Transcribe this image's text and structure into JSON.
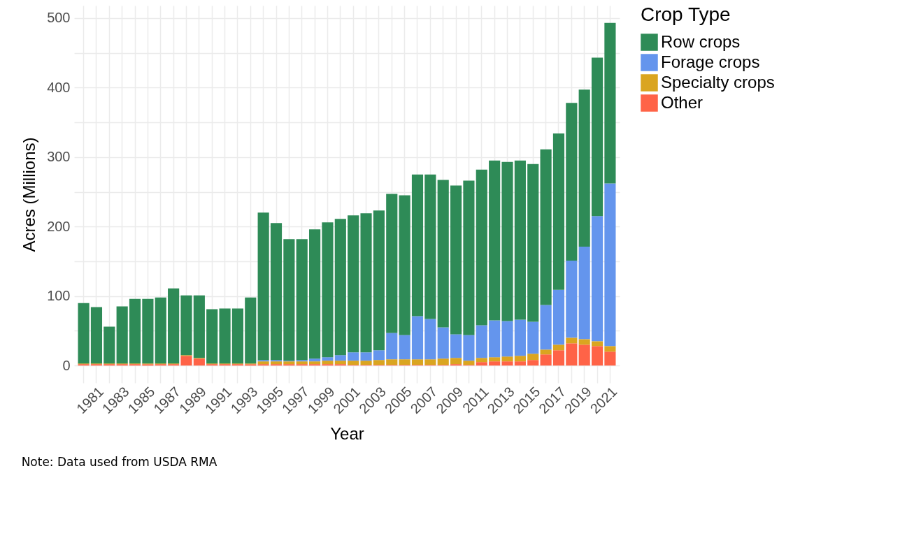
{
  "chart_data": {
    "type": "bar",
    "stacked": true,
    "xlabel": "Year",
    "ylabel": "Acres (Millions)",
    "legend_title": "Crop Type",
    "legend": "right",
    "grid": true,
    "categories": [
      null,
      "1981",
      null,
      "1983",
      null,
      "1985",
      null,
      "1987",
      null,
      "1989",
      null,
      "1991",
      null,
      "1993",
      null,
      "1995",
      null,
      "1997",
      null,
      "1999",
      null,
      "2001",
      null,
      "2003",
      null,
      "2005",
      null,
      "2007",
      null,
      "2009",
      null,
      "2011",
      null,
      "2013",
      null,
      "2015",
      null,
      "2017",
      null,
      "2019",
      null,
      "2021"
    ],
    "ylim": [
      -25,
      518
    ],
    "yticks": [
      0,
      {
        "value": 50,
        "label": null
      },
      100,
      {
        "value": 150,
        "label": null
      },
      200,
      {
        "value": 250,
        "label": null
      },
      300,
      {
        "value": 350,
        "label": null
      },
      400,
      {
        "value": 450,
        "label": null
      },
      500
    ],
    "series": [
      {
        "name": "Other",
        "color": "#ff6347",
        "values": [
          2,
          2,
          2,
          2,
          2,
          2,
          2,
          2,
          14,
          10,
          2,
          2,
          2,
          2,
          2,
          2,
          2,
          2,
          2,
          2,
          2,
          1,
          1,
          1,
          1,
          1,
          1,
          1,
          1,
          2,
          1,
          5,
          6,
          6,
          6,
          8,
          16,
          22,
          32,
          30,
          28,
          20
        ]
      },
      {
        "name": "Specialty crops",
        "color": "#daa520",
        "values": [
          1,
          1,
          1,
          1,
          1,
          1,
          1,
          1,
          1,
          1,
          1,
          1,
          1,
          1,
          4,
          4,
          4,
          4,
          4,
          5,
          5,
          6,
          6,
          7,
          8,
          8,
          8,
          8,
          9,
          9,
          6,
          6,
          6,
          7,
          8,
          9,
          7,
          8,
          8,
          8,
          7,
          8
        ]
      },
      {
        "name": "Forage crops",
        "color": "#6495ed",
        "values": [
          0,
          0,
          0,
          0,
          0,
          0,
          0,
          0,
          0,
          0,
          0,
          0,
          0,
          0,
          2,
          2,
          1,
          2,
          4,
          5,
          8,
          12,
          12,
          14,
          38,
          35,
          62,
          58,
          45,
          34,
          37,
          47,
          53,
          51,
          52,
          46,
          64,
          79,
          111,
          133,
          180,
          234
        ]
      },
      {
        "name": "Row crops",
        "color": "#2e8b57",
        "values": [
          87,
          81,
          53,
          82,
          93,
          93,
          95,
          108,
          86,
          90,
          78,
          79,
          79,
          95,
          212,
          197,
          175,
          174,
          186,
          194,
          196,
          197,
          200,
          201,
          200,
          201,
          204,
          208,
          212,
          214,
          222,
          224,
          230,
          229,
          229,
          227,
          224,
          225,
          227,
          226,
          228,
          231
        ]
      }
    ],
    "annotations": [
      "Note: Data used from USDA RMA"
    ]
  }
}
